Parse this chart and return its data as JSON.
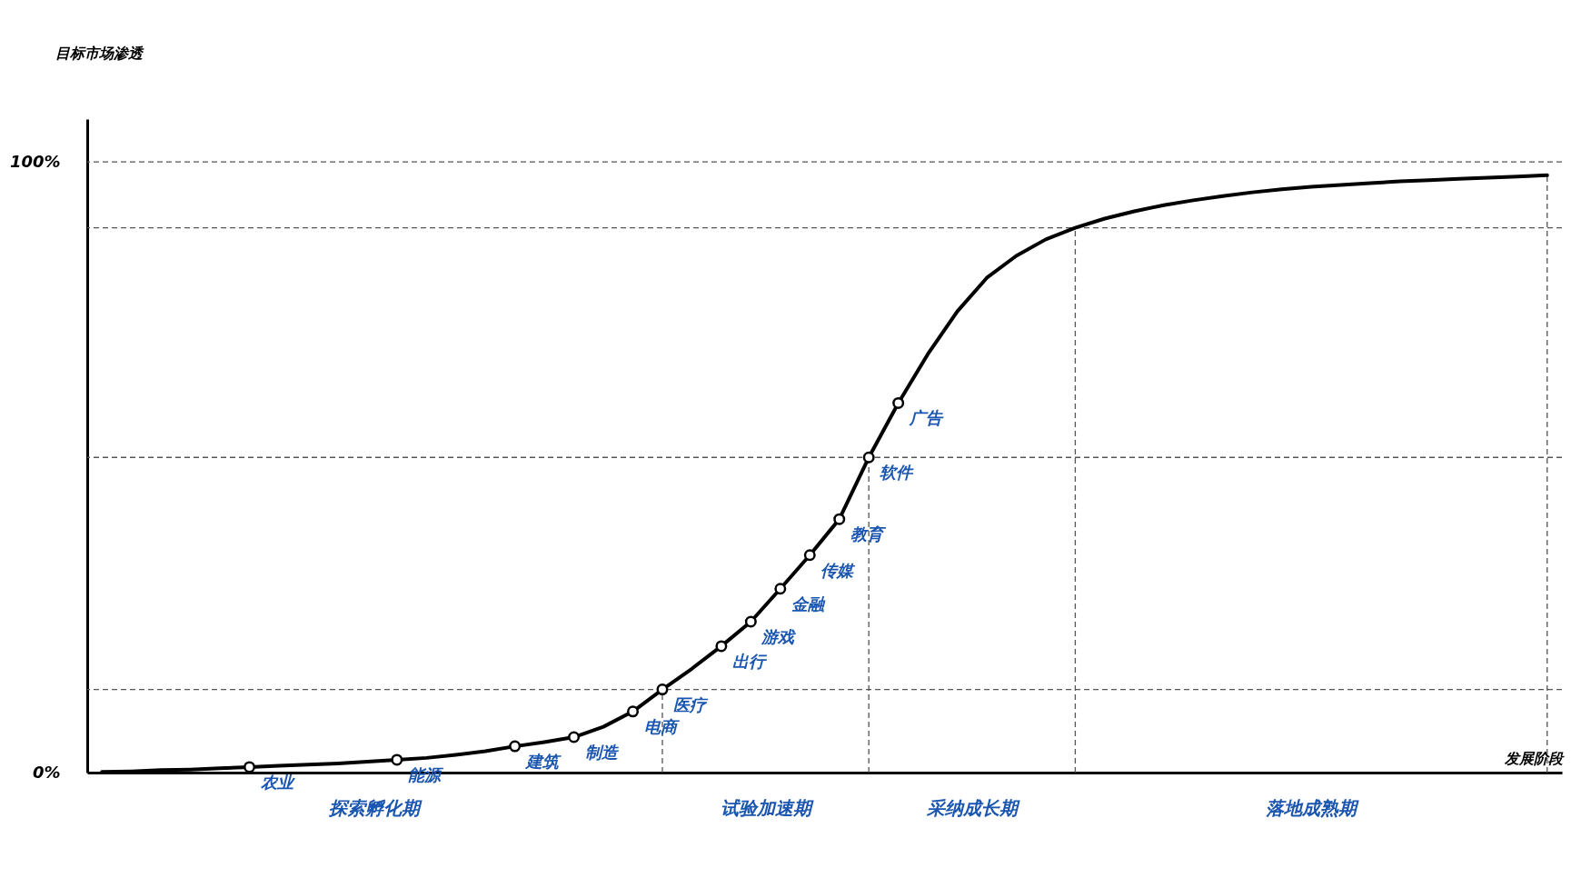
{
  "chart_data": {
    "type": "line",
    "xlabel": "发展阶段",
    "ylabel": "目标市场渗透",
    "categories": [
      null,
      null,
      null,
      null,
      null,
      null,
      null,
      null,
      null,
      null,
      null,
      null,
      null,
      null,
      null,
      null,
      null,
      null,
      null,
      null,
      null,
      null,
      null,
      null,
      null,
      null,
      null,
      null,
      null,
      null,
      null,
      null,
      null,
      null,
      null,
      null,
      null,
      null,
      null,
      null,
      null,
      null,
      null,
      null,
      null,
      null,
      null,
      null,
      null,
      null
    ],
    "ylim": [
      0,
      107
    ],
    "yticks": [
      {
        "value": 0,
        "label": "0%"
      },
      {
        "value": 100,
        "label": "100%"
      }
    ],
    "grid": false,
    "series": [
      {
        "color": "#000000",
        "marker": "none",
        "values": [
          0.1,
          0.2,
          0.4,
          0.5,
          0.7,
          0.9,
          1.1,
          1.3,
          1.5,
          1.8,
          2.1,
          2.4,
          2.9,
          3.5,
          4.3,
          5.0,
          5.8,
          7.5,
          10.0,
          13.6,
          17.0,
          20.7,
          24.7,
          30.1,
          35.6,
          41.5,
          51.6,
          60.5,
          68.5,
          75.5,
          81.0,
          84.6,
          87.3,
          89.2,
          90.7,
          91.9,
          92.9,
          93.7,
          94.4,
          95.0,
          95.5,
          95.9,
          96.2,
          96.5,
          96.8,
          97.0,
          97.2,
          97.4,
          97.6,
          97.8
        ]
      },
      {
        "type": "scatter",
        "color": "#ffffff",
        "marker": "circle",
        "values": [
          null,
          null,
          null,
          null,
          null,
          0.9,
          null,
          null,
          null,
          null,
          2.1,
          null,
          null,
          null,
          4.3,
          null,
          5.8,
          null,
          10.0,
          13.6,
          null,
          20.7,
          24.7,
          30.1,
          35.6,
          41.5,
          51.6,
          60.5,
          null,
          null,
          null,
          null,
          null,
          null,
          null,
          null,
          null,
          null,
          null,
          null,
          null,
          null,
          null,
          null,
          null,
          null,
          null,
          null,
          null,
          null
        ],
        "value_labels": [
          null,
          null,
          null,
          null,
          null,
          "农业",
          null,
          null,
          null,
          null,
          "能源",
          null,
          null,
          null,
          "建筑",
          null,
          "制造",
          null,
          "电商",
          "医疗",
          null,
          "出行",
          "游戏",
          "金融",
          "传媒",
          "教育",
          "软件",
          "广告",
          null,
          null,
          null,
          null,
          null,
          null,
          null,
          null,
          null,
          null,
          null,
          null,
          null,
          null,
          null,
          null,
          null,
          null,
          null,
          null,
          null,
          null
        ]
      }
    ],
    "annotations": [
      "探索孵化期",
      "试验加速期",
      "采纳成长期",
      "落地成熟期"
    ],
    "ref_lines": [
      {
        "axis": "y",
        "value": 13.6,
        "line_style": "dashed"
      },
      {
        "axis": "y",
        "value": 51.6,
        "line_style": "dashed"
      },
      {
        "axis": "y",
        "value": 89.2,
        "line_style": "dashed"
      },
      {
        "axis": "y",
        "value": 100,
        "line_style": "dashed"
      }
    ]
  }
}
